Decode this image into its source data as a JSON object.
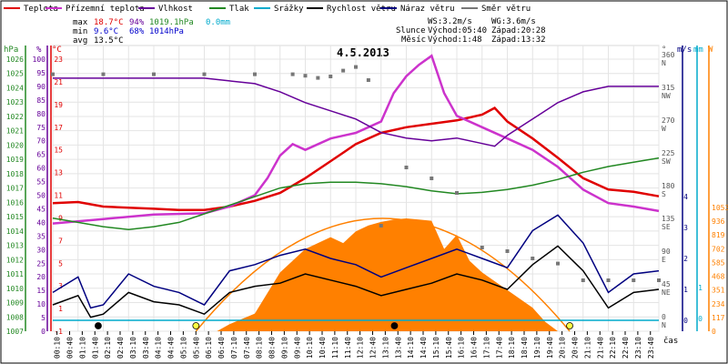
{
  "legend": [
    {
      "label": "Teplota",
      "color": "#e00000"
    },
    {
      "label": "Přízemní teplota",
      "color": "#cc33cc"
    },
    {
      "label": "Vlhkost",
      "color": "#660099"
    },
    {
      "label": "Tlak",
      "color": "#228822"
    },
    {
      "label": "Srážky",
      "color": "#00aacc"
    },
    {
      "label": "Rychlost větru",
      "color": "#000000"
    },
    {
      "label": "Náraz větru",
      "color": "#000080"
    },
    {
      "label": "Směr větru",
      "color": "#777777"
    }
  ],
  "stats": {
    "max_label": "max",
    "min_label": "min",
    "avg_label": "avg",
    "max_temp": "18.7°C",
    "max_hum": "94%",
    "max_press": "1019.1hPa",
    "max_rain": "0.0mm",
    "min_temp": "9.6°C",
    "min_hum": "68%",
    "min_press": "1014hPa",
    "avg_temp": "13.5°C"
  },
  "wind_info": {
    "ws": "WS:3.2m/s",
    "wg": "WG:3.6m/s"
  },
  "sun": {
    "label": "Slunce",
    "rise": "Východ:05:40",
    "set": "Západ:20:28"
  },
  "moon": {
    "label": "Měsíc",
    "rise": "Východ:1:48",
    "set": "Západ:13:32"
  },
  "axis_units": {
    "pressure": "hPa",
    "humidity": "%",
    "temperature": "°C",
    "direction": "°",
    "wind": "m/s",
    "rain": "mm",
    "solar": "W",
    "time": "čas"
  },
  "chart_data": {
    "type": "line",
    "title": "4.5.2013",
    "x_ticks": [
      "00:10",
      "00:40",
      "01:10",
      "01:40",
      "02:10",
      "02:40",
      "03:10",
      "03:40",
      "04:10",
      "04:40",
      "05:10",
      "05:40",
      "06:10",
      "06:40",
      "07:10",
      "07:40",
      "08:10",
      "08:40",
      "09:10",
      "09:40",
      "10:10",
      "10:40",
      "11:10",
      "11:40",
      "12:10",
      "12:40",
      "13:10",
      "13:40",
      "14:10",
      "14:40",
      "15:10",
      "15:40",
      "16:10",
      "16:40",
      "17:10",
      "17:40",
      "18:10",
      "18:40",
      "19:10",
      "19:40",
      "20:10",
      "20:40",
      "21:10",
      "21:40",
      "22:10",
      "22:40",
      "23:10",
      "23:40"
    ],
    "xlim_hours": [
      0,
      24
    ],
    "axes": {
      "pressure_hpa": {
        "ticks": [
          1007,
          1008,
          1009,
          1010,
          1011,
          1012,
          1013,
          1014,
          1015,
          1016,
          1017,
          1018,
          1019,
          1020,
          1021,
          1022,
          1023,
          1024,
          1025,
          1026
        ]
      },
      "humidity_pct": {
        "ticks": [
          0,
          5,
          10,
          15,
          20,
          25,
          30,
          35,
          40,
          45,
          50,
          55,
          60,
          65,
          70,
          75,
          80,
          85,
          90,
          95,
          100
        ]
      },
      "temperature_c": {
        "ticks": [
          -1,
          1,
          3,
          5,
          7,
          9,
          11,
          13,
          15,
          17,
          19,
          21,
          23
        ]
      },
      "wind_direction": {
        "ticks": [
          "0 N",
          "45 NE",
          "90 E",
          "135 SE",
          "180 S",
          "225 SW",
          "270 W",
          "315 NW",
          "360 N"
        ]
      },
      "wind_ms": {
        "ticks": [
          0,
          1,
          2,
          3,
          4
        ]
      },
      "rain_mm": {
        "ticks": [
          0,
          1
        ]
      },
      "solar_w": {
        "ticks": [
          0,
          117,
          234,
          351,
          468,
          585,
          702,
          819,
          936,
          1053
        ]
      }
    },
    "series": [
      {
        "name": "Teplota",
        "unit": "°C",
        "color": "#e00000",
        "x": [
          0,
          1,
          2,
          3,
          4,
          5,
          6,
          7,
          8,
          9,
          10,
          11,
          12,
          13,
          14,
          15,
          16,
          17,
          17.5,
          18,
          19,
          20,
          21,
          22,
          23,
          24
        ],
        "y": [
          10.3,
          10.4,
          10.0,
          9.9,
          9.8,
          9.7,
          9.7,
          10.0,
          10.5,
          11.2,
          12.5,
          14.0,
          15.5,
          16.5,
          17.0,
          17.3,
          17.6,
          18.1,
          18.7,
          17.5,
          16.0,
          14.3,
          12.5,
          11.5,
          11.3,
          10.9
        ]
      },
      {
        "name": "Přízemní teplota",
        "unit": "°C",
        "color": "#cc33cc",
        "x": [
          0,
          2,
          4,
          6,
          7,
          8,
          8.5,
          9,
          9.5,
          10,
          11,
          12,
          13,
          13.5,
          14,
          14.5,
          15,
          15.5,
          16,
          17,
          18,
          19,
          20,
          21,
          22,
          23,
          24
        ],
        "y": [
          8.5,
          8.9,
          9.3,
          9.4,
          10.0,
          11.0,
          12.5,
          14.5,
          15.5,
          15.0,
          16.0,
          16.5,
          17.5,
          20.0,
          21.5,
          22.5,
          23.3,
          20.0,
          18.0,
          17.0,
          16.0,
          15.0,
          13.5,
          11.5,
          10.3,
          10.0,
          9.6
        ]
      },
      {
        "name": "Vlhkost",
        "unit": "%",
        "color": "#660099",
        "x": [
          0,
          1,
          2,
          3,
          4,
          5,
          6,
          7,
          8,
          9,
          10,
          11,
          12,
          13,
          14,
          15,
          16,
          17,
          17.5,
          18,
          19,
          20,
          21,
          22,
          23,
          24
        ],
        "y": [
          93,
          93,
          93,
          93,
          93,
          93,
          93,
          92,
          91,
          88,
          84,
          81,
          78,
          73,
          71,
          70,
          71,
          69,
          68,
          72,
          78,
          84,
          88,
          90,
          90,
          90
        ]
      },
      {
        "name": "Tlak",
        "unit": "hPa",
        "color": "#228822",
        "x": [
          0,
          1,
          2,
          3,
          4,
          5,
          6,
          7,
          8,
          9,
          10,
          11,
          12,
          13,
          14,
          15,
          16,
          17,
          18,
          19,
          20,
          21,
          22,
          23,
          24
        ],
        "y": [
          1014.9,
          1014.6,
          1014.3,
          1014.1,
          1014.3,
          1014.6,
          1015.2,
          1015.8,
          1016.4,
          1017.0,
          1017.3,
          1017.4,
          1017.4,
          1017.3,
          1017.1,
          1016.8,
          1016.6,
          1016.7,
          1016.9,
          1017.2,
          1017.6,
          1018.1,
          1018.5,
          1018.8,
          1019.1
        ]
      },
      {
        "name": "Rychlost větru",
        "unit": "m/s",
        "color": "#000000",
        "x": [
          0,
          1,
          1.5,
          2,
          3,
          4,
          5,
          6,
          7,
          8,
          9,
          10,
          11,
          12,
          13,
          14,
          15,
          16,
          17,
          18,
          19,
          20,
          21,
          22,
          23,
          24
        ],
        "y": [
          0.5,
          0.8,
          0.1,
          0.2,
          0.9,
          0.6,
          0.5,
          0.2,
          0.9,
          1.1,
          1.2,
          1.5,
          1.3,
          1.1,
          0.8,
          1.0,
          1.2,
          1.5,
          1.3,
          1.0,
          1.8,
          2.4,
          1.6,
          0.4,
          0.9,
          1.0
        ]
      },
      {
        "name": "Náraz větru",
        "unit": "m/s",
        "color": "#000080",
        "x": [
          0,
          1,
          1.5,
          2,
          3,
          4,
          5,
          6,
          7,
          8,
          9,
          10,
          11,
          12,
          13,
          14,
          15,
          16,
          17,
          18,
          19,
          20,
          21,
          22,
          23,
          24
        ],
        "y": [
          0.9,
          1.4,
          0.4,
          0.5,
          1.5,
          1.1,
          0.9,
          0.5,
          1.6,
          1.8,
          2.1,
          2.3,
          2.0,
          1.8,
          1.4,
          1.7,
          2.0,
          2.3,
          2.0,
          1.7,
          2.9,
          3.4,
          2.5,
          0.9,
          1.5,
          1.6
        ]
      },
      {
        "name": "Směr větru",
        "unit": "°",
        "color": "#777777",
        "x": [
          0,
          2,
          4,
          6,
          8,
          9.5,
          10,
          10.5,
          11,
          11.5,
          12,
          12.5,
          13,
          14,
          15,
          16,
          17,
          18,
          19,
          20,
          21,
          22,
          23,
          24
        ],
        "y": [
          338,
          338,
          338,
          338,
          338,
          338,
          336,
          333,
          335,
          343,
          348,
          330,
          130,
          210,
          195,
          175,
          100,
          95,
          85,
          78,
          55,
          55,
          55,
          55
        ]
      },
      {
        "name": "Srážky",
        "unit": "mm",
        "color": "#00aacc",
        "x": [
          0,
          24
        ],
        "y": [
          0,
          0
        ]
      }
    ],
    "solar": {
      "unit": "W",
      "color": "#ff8000",
      "x": [
        6.5,
        7,
        8,
        9,
        10,
        11,
        11.5,
        12,
        12.5,
        13,
        13.5,
        14,
        14.5,
        15,
        15.5,
        16,
        16.5,
        17,
        18,
        19,
        19.5,
        20
      ],
      "y": [
        0,
        60,
        150,
        500,
        700,
        800,
        750,
        850,
        900,
        930,
        950,
        960,
        950,
        940,
        700,
        820,
        600,
        500,
        350,
        200,
        80,
        0
      ],
      "clear_sky_curve": {
        "x": [
          5.67,
          13.05,
          20.47
        ],
        "y": [
          0,
          960,
          0
        ]
      }
    },
    "daylight_markers": [
      {
        "hour": 5.67,
        "kind": "sunrise",
        "color": "#ffff44"
      },
      {
        "hour": 20.47,
        "kind": "sunset",
        "color": "#ffff44"
      },
      {
        "hour": 1.8,
        "kind": "moonrise",
        "color": "#000000"
      },
      {
        "hour": 13.53,
        "kind": "moonset",
        "color": "#000000"
      }
    ]
  }
}
